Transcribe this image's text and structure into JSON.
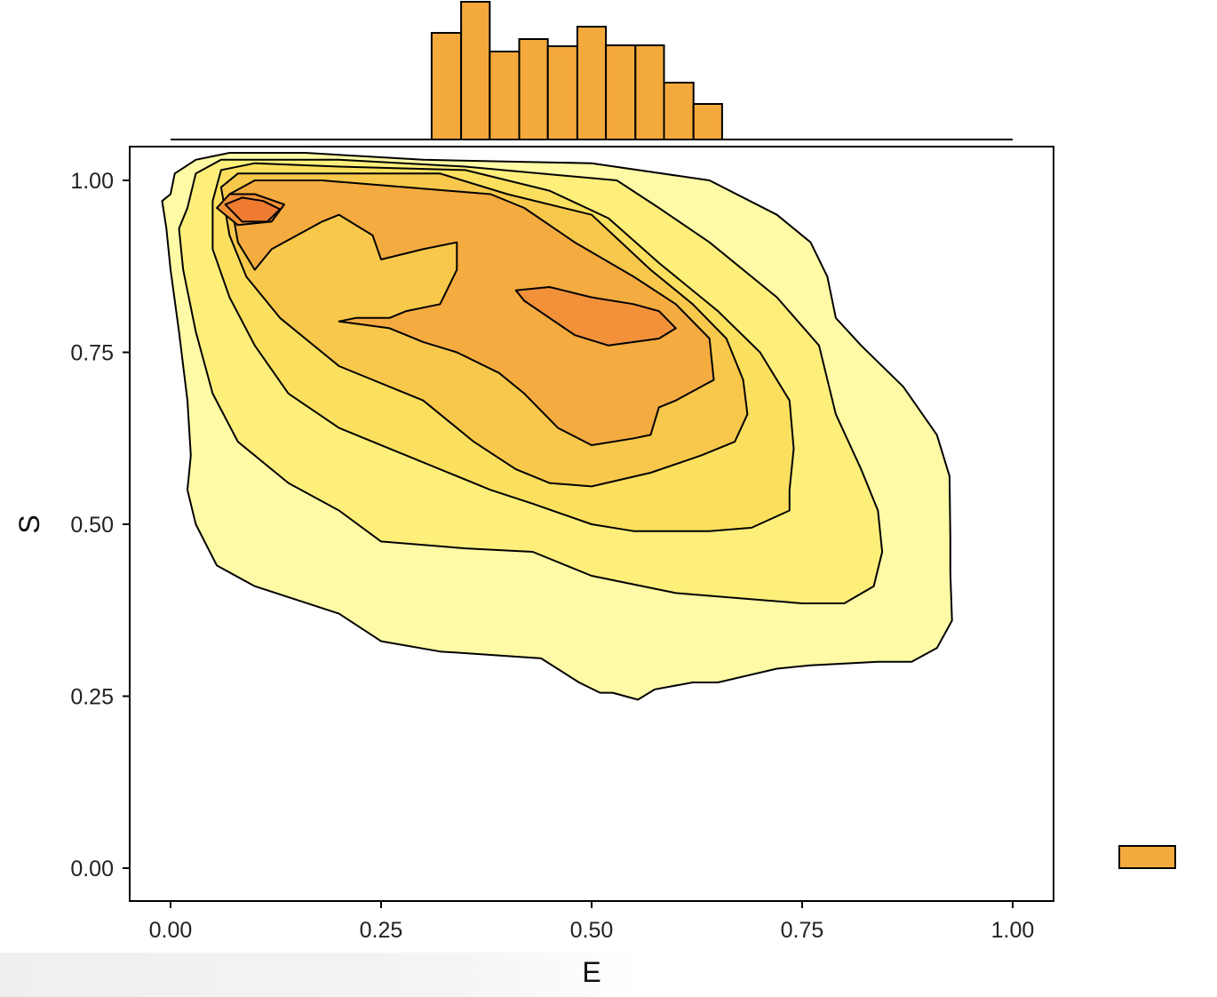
{
  "chart_data": {
    "type": "contour_density_with_marginal_histogram",
    "xlabel": "E",
    "ylabel": "S",
    "xlim": [
      -0.05,
      1.05
    ],
    "ylim": [
      -0.05,
      1.05
    ],
    "x_ticks": [
      0.0,
      0.25,
      0.5,
      0.75,
      1.0
    ],
    "x_tick_labels": [
      "0.00",
      "0.25",
      "0.50",
      "0.75",
      "1.00"
    ],
    "y_ticks": [
      0.0,
      0.25,
      0.5,
      0.75,
      1.0
    ],
    "y_tick_labels": [
      "0.00",
      "0.25",
      "0.50",
      "0.75",
      "1.00"
    ],
    "histogram": {
      "orientation": "top-margin",
      "bin_width": 0.0345,
      "range": [
        0,
        1
      ],
      "bins": [
        {
          "start": 0.31,
          "end": 0.345,
          "count": 120
        },
        {
          "start": 0.345,
          "end": 0.379,
          "count": 155
        },
        {
          "start": 0.379,
          "end": 0.414,
          "count": 99
        },
        {
          "start": 0.414,
          "end": 0.448,
          "count": 113
        },
        {
          "start": 0.448,
          "end": 0.483,
          "count": 105
        },
        {
          "start": 0.483,
          "end": 0.517,
          "count": 127
        },
        {
          "start": 0.517,
          "end": 0.552,
          "count": 106
        },
        {
          "start": 0.552,
          "end": 0.586,
          "count": 106
        },
        {
          "start": 0.586,
          "end": 0.621,
          "count": 64
        },
        {
          "start": 0.621,
          "end": 0.655,
          "count": 40
        }
      ],
      "color": "#F4A93C"
    },
    "legend": {
      "placement": "bottom-right",
      "swatch_color": "#F4A93C"
    },
    "contour_levels": [
      {
        "level": 1,
        "color": "#FFFAA6",
        "regions": [
          [
            [
              0.0,
              0.98
            ],
            [
              0.005,
              1.01
            ],
            [
              0.03,
              1.03
            ],
            [
              0.07,
              1.04
            ],
            [
              0.16,
              1.04
            ],
            [
              0.3,
              1.03
            ],
            [
              0.5,
              1.025
            ],
            [
              0.64,
              1.0
            ],
            [
              0.72,
              0.95
            ],
            [
              0.76,
              0.91
            ],
            [
              0.78,
              0.86
            ],
            [
              0.79,
              0.8
            ],
            [
              0.82,
              0.76
            ],
            [
              0.87,
              0.7
            ],
            [
              0.91,
              0.63
            ],
            [
              0.925,
              0.57
            ],
            [
              0.926,
              0.48
            ],
            [
              0.926,
              0.43
            ],
            [
              0.928,
              0.36
            ],
            [
              0.91,
              0.32
            ],
            [
              0.88,
              0.3
            ],
            [
              0.84,
              0.3
            ],
            [
              0.76,
              0.295
            ],
            [
              0.72,
              0.29
            ],
            [
              0.65,
              0.27
            ],
            [
              0.62,
              0.27
            ],
            [
              0.575,
              0.26
            ],
            [
              0.555,
              0.245
            ],
            [
              0.525,
              0.255
            ],
            [
              0.51,
              0.255
            ],
            [
              0.485,
              0.27
            ],
            [
              0.44,
              0.305
            ],
            [
              0.32,
              0.315
            ],
            [
              0.25,
              0.33
            ],
            [
              0.2,
              0.37
            ],
            [
              0.1,
              0.41
            ],
            [
              0.055,
              0.44
            ],
            [
              0.03,
              0.5
            ],
            [
              0.02,
              0.55
            ],
            [
              0.024,
              0.6
            ],
            [
              0.02,
              0.68
            ],
            [
              0.01,
              0.78
            ],
            [
              0.0,
              0.87
            ],
            [
              -0.005,
              0.93
            ],
            [
              -0.01,
              0.97
            ]
          ]
        ]
      },
      {
        "level": 2,
        "color": "#FDEF7A",
        "regions": [
          [
            [
              0.02,
              0.96
            ],
            [
              0.03,
              1.01
            ],
            [
              0.06,
              1.03
            ],
            [
              0.2,
              1.03
            ],
            [
              0.35,
              1.02
            ],
            [
              0.53,
              1.0
            ],
            [
              0.58,
              0.96
            ],
            [
              0.64,
              0.91
            ],
            [
              0.72,
              0.83
            ],
            [
              0.77,
              0.76
            ],
            [
              0.79,
              0.66
            ],
            [
              0.82,
              0.58
            ],
            [
              0.84,
              0.52
            ],
            [
              0.845,
              0.46
            ],
            [
              0.835,
              0.41
            ],
            [
              0.8,
              0.385
            ],
            [
              0.75,
              0.385
            ],
            [
              0.7,
              0.39
            ],
            [
              0.6,
              0.4
            ],
            [
              0.5,
              0.425
            ],
            [
              0.43,
              0.46
            ],
            [
              0.35,
              0.465
            ],
            [
              0.25,
              0.475
            ],
            [
              0.2,
              0.52
            ],
            [
              0.14,
              0.56
            ],
            [
              0.08,
              0.62
            ],
            [
              0.05,
              0.69
            ],
            [
              0.03,
              0.78
            ],
            [
              0.015,
              0.87
            ],
            [
              0.01,
              0.93
            ]
          ]
        ]
      },
      {
        "level": 3,
        "color": "#FAE05E",
        "regions": [
          [
            [
              0.05,
              0.97
            ],
            [
              0.06,
              1.015
            ],
            [
              0.1,
              1.025
            ],
            [
              0.2,
              1.02
            ],
            [
              0.35,
              1.015
            ],
            [
              0.45,
              0.985
            ],
            [
              0.52,
              0.945
            ],
            [
              0.58,
              0.88
            ],
            [
              0.65,
              0.81
            ],
            [
              0.7,
              0.75
            ],
            [
              0.735,
              0.68
            ],
            [
              0.74,
              0.61
            ],
            [
              0.735,
              0.55
            ],
            [
              0.735,
              0.52
            ],
            [
              0.69,
              0.495
            ],
            [
              0.64,
              0.49
            ],
            [
              0.55,
              0.49
            ],
            [
              0.5,
              0.5
            ],
            [
              0.43,
              0.53
            ],
            [
              0.38,
              0.55
            ],
            [
              0.28,
              0.6
            ],
            [
              0.2,
              0.64
            ],
            [
              0.14,
              0.69
            ],
            [
              0.1,
              0.76
            ],
            [
              0.07,
              0.83
            ],
            [
              0.05,
              0.9
            ]
          ]
        ]
      },
      {
        "level": 4,
        "color": "#F7C84B",
        "regions": [
          [
            [
              0.06,
              0.99
            ],
            [
              0.08,
              1.01
            ],
            [
              0.18,
              1.01
            ],
            [
              0.32,
              1.01
            ],
            [
              0.4,
              0.98
            ],
            [
              0.5,
              0.95
            ],
            [
              0.57,
              0.87
            ],
            [
              0.62,
              0.82
            ],
            [
              0.66,
              0.77
            ],
            [
              0.68,
              0.71
            ],
            [
              0.685,
              0.66
            ],
            [
              0.67,
              0.62
            ],
            [
              0.63,
              0.6
            ],
            [
              0.57,
              0.575
            ],
            [
              0.5,
              0.555
            ],
            [
              0.45,
              0.56
            ],
            [
              0.41,
              0.58
            ],
            [
              0.36,
              0.62
            ],
            [
              0.3,
              0.68
            ],
            [
              0.2,
              0.73
            ],
            [
              0.13,
              0.8
            ],
            [
              0.09,
              0.86
            ],
            [
              0.07,
              0.92
            ]
          ]
        ]
      },
      {
        "level": 5,
        "color": "#F4AB40",
        "regions": [
          [
            [
              0.07,
              0.98
            ],
            [
              0.1,
              1.0
            ],
            [
              0.18,
              1.0
            ],
            [
              0.28,
              0.99
            ],
            [
              0.38,
              0.98
            ],
            [
              0.42,
              0.96
            ],
            [
              0.48,
              0.91
            ],
            [
              0.55,
              0.86
            ],
            [
              0.6,
              0.82
            ],
            [
              0.64,
              0.77
            ],
            [
              0.645,
              0.71
            ],
            [
              0.6,
              0.68
            ],
            [
              0.58,
              0.67
            ],
            [
              0.57,
              0.63
            ],
            [
              0.55,
              0.625
            ],
            [
              0.5,
              0.615
            ],
            [
              0.46,
              0.64
            ],
            [
              0.42,
              0.69
            ],
            [
              0.39,
              0.72
            ],
            [
              0.34,
              0.75
            ],
            [
              0.3,
              0.765
            ],
            [
              0.26,
              0.785
            ],
            [
              0.23,
              0.79
            ],
            [
              0.2,
              0.795
            ],
            [
              0.22,
              0.8
            ],
            [
              0.26,
              0.8
            ],
            [
              0.28,
              0.81
            ],
            [
              0.32,
              0.82
            ],
            [
              0.34,
              0.87
            ],
            [
              0.34,
              0.91
            ],
            [
              0.3,
              0.9
            ],
            [
              0.25,
              0.885
            ],
            [
              0.24,
              0.92
            ],
            [
              0.2,
              0.95
            ],
            [
              0.18,
              0.94
            ],
            [
              0.12,
              0.9
            ],
            [
              0.1,
              0.87
            ],
            [
              0.08,
              0.91
            ]
          ]
        ]
      },
      {
        "level": 6,
        "color": "#F2913A",
        "regions": [
          [
            [
              0.41,
              0.84
            ],
            [
              0.42,
              0.825
            ],
            [
              0.45,
              0.8
            ],
            [
              0.48,
              0.775
            ],
            [
              0.52,
              0.76
            ],
            [
              0.58,
              0.77
            ],
            [
              0.6,
              0.785
            ],
            [
              0.58,
              0.81
            ],
            [
              0.55,
              0.82
            ],
            [
              0.5,
              0.83
            ],
            [
              0.45,
              0.845
            ]
          ],
          [
            [
              0.055,
              0.96
            ],
            [
              0.07,
              0.98
            ],
            [
              0.1,
              0.98
            ],
            [
              0.135,
              0.965
            ],
            [
              0.12,
              0.94
            ],
            [
              0.08,
              0.935
            ]
          ]
        ]
      },
      {
        "level": 7,
        "color": "#EF7B30",
        "regions": [
          [
            [
              0.065,
              0.965
            ],
            [
              0.085,
              0.975
            ],
            [
              0.11,
              0.97
            ],
            [
              0.13,
              0.958
            ],
            [
              0.115,
              0.94
            ],
            [
              0.085,
              0.94
            ]
          ]
        ]
      }
    ]
  }
}
